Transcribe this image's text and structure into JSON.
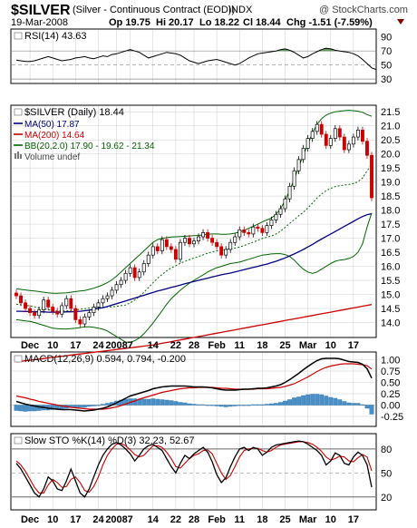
{
  "header": {
    "symbol": "$SILVER",
    "name": "(Silver - Continuous Contract (EOD))",
    "exchange": "INDX",
    "watermark": "@ StockCharts.com",
    "date": "19-Mar-2008",
    "quote": {
      "open": "Op 19.75",
      "high": "Hi 20.17",
      "low": "Lo 18.22",
      "close": "Cl 18.44",
      "change": "Chg -1.51 (-7.59%)"
    }
  },
  "colors": {
    "up": "#000000",
    "down": "#cc0000",
    "ma50": "#000080",
    "ma200": "#cc0000",
    "bb": "#006400",
    "rsi_fill": "#4a8a4a",
    "macd_hist": "#4a90c8",
    "pane_bg": "#ffffff",
    "grid": "#cccccc"
  },
  "chart_data": [
    {
      "type": "line",
      "pane": "rsi",
      "legend": "RSI(14) 43.63",
      "ylim": [
        25,
        100
      ],
      "yticks": [
        90,
        70,
        50,
        30
      ],
      "reference_lines": [
        70,
        50,
        30
      ],
      "values": [
        57,
        56,
        55,
        55,
        56,
        58,
        60,
        62,
        60,
        58,
        56,
        57,
        58,
        60,
        61,
        62,
        60,
        59,
        61,
        63,
        62,
        65,
        66,
        68,
        70,
        72,
        70,
        68,
        64,
        60,
        62,
        64,
        66,
        68,
        67,
        66,
        64,
        60,
        56,
        54,
        52,
        54,
        56,
        57,
        58,
        56,
        54,
        52,
        50,
        52,
        56,
        60,
        63,
        66,
        67,
        68,
        69,
        70,
        72,
        73,
        71,
        68,
        64,
        60,
        62,
        66,
        69,
        72,
        74,
        73,
        71,
        70,
        69,
        68,
        66,
        63,
        58,
        52,
        46,
        43.63
      ]
    },
    {
      "type": "candlestick",
      "pane": "price",
      "legend": [
        {
          "key": "title",
          "text": "$SILVER (Daily) 18.44"
        },
        {
          "key": "ma50",
          "text": "MA(50) 17.87"
        },
        {
          "key": "ma200",
          "text": "MA(200) 14.64"
        },
        {
          "key": "bb",
          "text": "BB(20,2.0) 17.90 - 19.62 - 21.34"
        },
        {
          "key": "volume",
          "text": "Volume undef"
        }
      ],
      "ylim": [
        13.5,
        21.7
      ],
      "yticks": [
        14.0,
        14.5,
        15.0,
        15.5,
        16.0,
        16.5,
        17.0,
        17.5,
        18.0,
        18.5,
        19.0,
        19.5,
        20.0,
        20.5,
        21.0,
        21.5
      ],
      "x_labels": [
        {
          "label": "Dec",
          "index": 3
        },
        {
          "label": "10",
          "index": 8
        },
        {
          "label": "17",
          "index": 13
        },
        {
          "label": "24",
          "index": 18
        },
        {
          "label": "2008",
          "index": 22
        },
        {
          "label": "7",
          "index": 25
        },
        {
          "label": "14",
          "index": 30
        },
        {
          "label": "22",
          "index": 35
        },
        {
          "label": "28",
          "index": 39
        },
        {
          "label": "Feb",
          "index": 44
        },
        {
          "label": "11",
          "index": 49
        },
        {
          "label": "18",
          "index": 54
        },
        {
          "label": "25",
          "index": 59
        },
        {
          "label": "Mar",
          "index": 64
        },
        {
          "label": "10",
          "index": 69
        },
        {
          "label": "17",
          "index": 74
        }
      ],
      "close": [
        14.95,
        14.7,
        14.5,
        14.35,
        14.25,
        14.45,
        14.8,
        14.55,
        14.4,
        14.3,
        14.6,
        14.85,
        14.5,
        14.1,
        13.95,
        14.2,
        14.35,
        14.55,
        14.7,
        14.85,
        14.95,
        15.15,
        15.35,
        15.5,
        15.75,
        15.95,
        15.6,
        15.8,
        16.1,
        16.4,
        16.7,
        16.55,
        16.95,
        16.7,
        16.6,
        16.25,
        16.85,
        17.0,
        16.8,
        16.9,
        17.05,
        17.2,
        17.0,
        16.85,
        16.7,
        16.4,
        16.6,
        16.85,
        17.05,
        17.3,
        17.2,
        17.15,
        17.4,
        17.35,
        17.2,
        17.45,
        17.65,
        17.85,
        18.05,
        18.4,
        18.85,
        19.4,
        19.8,
        20.2,
        20.55,
        20.8,
        21.05,
        20.7,
        20.3,
        20.55,
        20.9,
        20.6,
        20.15,
        20.35,
        20.6,
        20.85,
        20.45,
        19.95,
        18.44
      ],
      "ma50": [
        14.4,
        14.4,
        14.39,
        14.39,
        14.38,
        14.38,
        14.38,
        14.37,
        14.37,
        14.37,
        14.37,
        14.38,
        14.38,
        14.39,
        14.4,
        14.42,
        14.44,
        14.47,
        14.5,
        14.53,
        14.57,
        14.62,
        14.67,
        14.72,
        14.77,
        14.82,
        14.87,
        14.92,
        14.97,
        15.02,
        15.07,
        15.12,
        15.16,
        15.2,
        15.25,
        15.29,
        15.33,
        15.38,
        15.42,
        15.46,
        15.5,
        15.54,
        15.58,
        15.62,
        15.66,
        15.7,
        15.73,
        15.76,
        15.8,
        15.84,
        15.88,
        15.92,
        15.96,
        16.0,
        16.04,
        16.08,
        16.13,
        16.18,
        16.24,
        16.3,
        16.37,
        16.44,
        16.52,
        16.6,
        16.69,
        16.78,
        16.88,
        16.97,
        17.06,
        17.15,
        17.24,
        17.33,
        17.42,
        17.51,
        17.6,
        17.69,
        17.77,
        17.84,
        17.87
      ],
      "ma200": [
        12.6,
        12.62,
        12.64,
        12.66,
        12.68,
        12.7,
        12.72,
        12.74,
        12.76,
        12.78,
        12.8,
        12.82,
        12.84,
        12.86,
        12.88,
        12.9,
        12.92,
        12.94,
        12.96,
        12.98,
        13.0,
        13.02,
        13.04,
        13.06,
        13.08,
        13.1,
        13.12,
        13.14,
        13.16,
        13.18,
        13.2,
        13.23,
        13.26,
        13.29,
        13.32,
        13.35,
        13.38,
        13.41,
        13.44,
        13.47,
        13.5,
        13.53,
        13.56,
        13.59,
        13.62,
        13.65,
        13.68,
        13.71,
        13.74,
        13.77,
        13.8,
        13.83,
        13.86,
        13.89,
        13.92,
        13.95,
        13.98,
        14.01,
        14.04,
        14.07,
        14.1,
        14.13,
        14.16,
        14.19,
        14.22,
        14.25,
        14.28,
        14.31,
        14.34,
        14.37,
        14.4,
        14.43,
        14.46,
        14.49,
        14.52,
        14.55,
        14.58,
        14.61,
        14.64
      ],
      "bb_upper": [
        15.2,
        15.18,
        15.16,
        15.14,
        15.12,
        15.1,
        15.08,
        15.06,
        15.04,
        15.04,
        15.05,
        15.06,
        15.08,
        15.1,
        15.12,
        15.14,
        15.18,
        15.22,
        15.28,
        15.34,
        15.42,
        15.52,
        15.65,
        15.8,
        15.95,
        16.1,
        16.25,
        16.4,
        16.55,
        16.7,
        16.85,
        16.95,
        17.0,
        17.02,
        17.04,
        17.05,
        17.06,
        17.07,
        17.08,
        17.09,
        17.1,
        17.12,
        17.14,
        17.15,
        17.15,
        17.14,
        17.14,
        17.15,
        17.18,
        17.22,
        17.28,
        17.35,
        17.42,
        17.5,
        17.58,
        17.65,
        17.72,
        17.85,
        18.05,
        18.35,
        18.7,
        19.1,
        19.55,
        19.95,
        20.35,
        20.75,
        21.05,
        21.25,
        21.38,
        21.45,
        21.5,
        21.52,
        21.54,
        21.55,
        21.54,
        21.52,
        21.48,
        21.4,
        21.34
      ],
      "bb_lower": [
        14.1,
        14.08,
        14.06,
        14.04,
        14.0,
        13.95,
        13.9,
        13.85,
        13.8,
        13.78,
        13.77,
        13.77,
        13.78,
        13.8,
        13.82,
        13.85,
        13.85,
        13.83,
        13.8,
        13.76,
        13.7,
        13.6,
        13.5,
        13.4,
        13.3,
        13.3,
        13.35,
        13.45,
        13.6,
        13.78,
        13.98,
        14.2,
        14.42,
        14.65,
        14.85,
        15.0,
        15.15,
        15.28,
        15.4,
        15.5,
        15.6,
        15.7,
        15.8,
        15.88,
        15.95,
        16.0,
        16.05,
        16.1,
        16.12,
        16.15,
        16.2,
        16.25,
        16.3,
        16.35,
        16.4,
        16.42,
        16.44,
        16.45,
        16.45,
        16.42,
        16.35,
        16.22,
        16.05,
        15.9,
        15.8,
        15.75,
        15.8,
        15.9,
        16.0,
        16.1,
        16.18,
        16.22,
        16.24,
        16.28,
        16.35,
        16.5,
        16.8,
        17.4,
        17.9
      ]
    },
    {
      "type": "bar+line",
      "pane": "macd",
      "legend": "MACD(12,26,9) 0.594, 0.794, -0.200",
      "ylim": [
        -0.45,
        1.15
      ],
      "yticks": [
        1.0,
        0.75,
        0.5,
        0.25,
        0.0,
        -0.25
      ],
      "macd": [
        0.08,
        0.05,
        0.02,
        0.0,
        -0.02,
        -0.04,
        -0.05,
        -0.07,
        -0.08,
        -0.09,
        -0.1,
        -0.1,
        -0.1,
        -0.11,
        -0.12,
        -0.13,
        -0.12,
        -0.11,
        -0.09,
        -0.07,
        -0.04,
        0.0,
        0.05,
        0.1,
        0.15,
        0.2,
        0.23,
        0.26,
        0.29,
        0.32,
        0.36,
        0.38,
        0.4,
        0.41,
        0.42,
        0.42,
        0.42,
        0.42,
        0.41,
        0.4,
        0.4,
        0.4,
        0.39,
        0.38,
        0.36,
        0.34,
        0.33,
        0.33,
        0.33,
        0.34,
        0.35,
        0.35,
        0.36,
        0.37,
        0.37,
        0.38,
        0.4,
        0.42,
        0.45,
        0.5,
        0.56,
        0.63,
        0.7,
        0.78,
        0.85,
        0.92,
        0.98,
        1.02,
        1.03,
        1.03,
        1.03,
        1.02,
        0.99,
        0.96,
        0.95,
        0.94,
        0.9,
        0.8,
        0.594
      ],
      "signal": [
        0.2,
        0.18,
        0.16,
        0.13,
        0.11,
        0.08,
        0.06,
        0.04,
        0.02,
        0.0,
        -0.02,
        -0.03,
        -0.05,
        -0.06,
        -0.07,
        -0.08,
        -0.09,
        -0.09,
        -0.09,
        -0.09,
        -0.08,
        -0.06,
        -0.04,
        -0.01,
        0.02,
        0.06,
        0.09,
        0.13,
        0.16,
        0.19,
        0.22,
        0.25,
        0.28,
        0.3,
        0.32,
        0.34,
        0.36,
        0.37,
        0.38,
        0.38,
        0.39,
        0.39,
        0.39,
        0.39,
        0.38,
        0.37,
        0.37,
        0.36,
        0.35,
        0.35,
        0.35,
        0.35,
        0.35,
        0.36,
        0.36,
        0.36,
        0.37,
        0.38,
        0.39,
        0.41,
        0.44,
        0.47,
        0.52,
        0.57,
        0.62,
        0.68,
        0.74,
        0.79,
        0.83,
        0.86,
        0.88,
        0.9,
        0.91,
        0.91,
        0.91,
        0.9,
        0.89,
        0.87,
        0.794
      ],
      "histogram": [
        -0.12,
        -0.13,
        -0.14,
        -0.13,
        -0.13,
        -0.12,
        -0.11,
        -0.11,
        -0.1,
        -0.09,
        -0.08,
        -0.07,
        -0.05,
        -0.05,
        -0.05,
        -0.05,
        -0.03,
        -0.02,
        0.0,
        0.02,
        0.04,
        0.06,
        0.09,
        0.11,
        0.13,
        0.14,
        0.14,
        0.13,
        0.13,
        0.13,
        0.14,
        0.13,
        0.12,
        0.11,
        0.1,
        0.08,
        0.06,
        0.05,
        0.03,
        0.02,
        0.01,
        0.01,
        0.0,
        -0.01,
        -0.02,
        -0.03,
        -0.04,
        -0.03,
        -0.02,
        -0.01,
        0.0,
        0.0,
        0.01,
        0.01,
        0.01,
        0.02,
        0.03,
        0.04,
        0.06,
        0.09,
        0.12,
        0.16,
        0.18,
        0.21,
        0.23,
        0.24,
        0.24,
        0.23,
        0.2,
        0.17,
        0.15,
        0.12,
        0.08,
        0.05,
        0.04,
        0.04,
        0.01,
        -0.07,
        -0.2
      ]
    },
    {
      "type": "line",
      "pane": "sto",
      "legend": "Slow STO %K(14) %D(3) 32.23, 52.67",
      "ylim": [
        5,
        98
      ],
      "yticks": [
        80,
        50,
        20
      ],
      "reference_lines": [
        80,
        50,
        20
      ],
      "k": [
        62,
        55,
        45,
        35,
        25,
        20,
        30,
        45,
        40,
        30,
        28,
        40,
        55,
        40,
        25,
        20,
        30,
        45,
        60,
        72,
        80,
        86,
        88,
        85,
        80,
        74,
        65,
        72,
        80,
        84,
        86,
        82,
        78,
        68,
        58,
        50,
        62,
        72,
        68,
        74,
        78,
        82,
        76,
        64,
        48,
        38,
        44,
        58,
        70,
        80,
        82,
        78,
        82,
        80,
        72,
        76,
        82,
        85,
        86,
        87,
        88,
        89,
        90,
        89,
        86,
        82,
        78,
        72,
        60,
        65,
        75,
        72,
        62,
        60,
        70,
        76,
        72,
        60,
        32.23
      ],
      "d": [
        65,
        60,
        52,
        42,
        32,
        25,
        25,
        35,
        42,
        38,
        32,
        33,
        42,
        45,
        38,
        28,
        26,
        33,
        45,
        60,
        72,
        80,
        86,
        87,
        84,
        79,
        73,
        70,
        72,
        78,
        84,
        84,
        82,
        76,
        68,
        58,
        56,
        62,
        68,
        72,
        74,
        78,
        79,
        74,
        62,
        50,
        42,
        47,
        58,
        70,
        78,
        80,
        81,
        81,
        78,
        76,
        78,
        82,
        85,
        86,
        87,
        88,
        89,
        89,
        88,
        86,
        82,
        77,
        70,
        66,
        68,
        71,
        70,
        65,
        64,
        69,
        73,
        70,
        52.67
      ]
    }
  ]
}
